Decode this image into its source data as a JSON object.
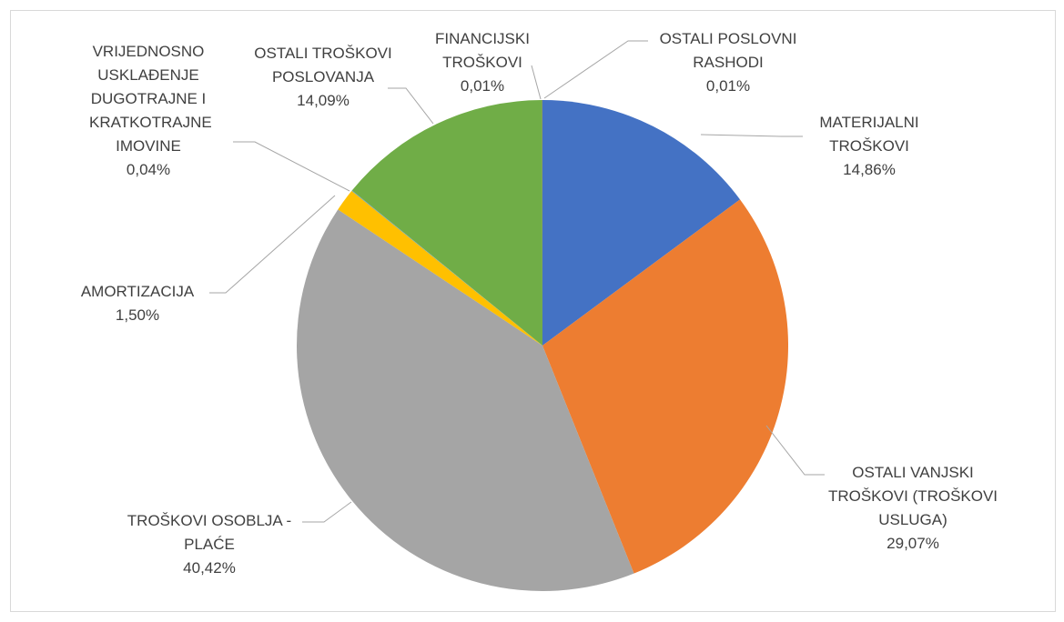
{
  "chart_data": {
    "type": "pie",
    "categories": [
      "MATERIJALNI TROŠKOVI",
      "OSTALI VANJSKI TROŠKOVI (TROŠKOVI USLUGA)",
      "TROŠKOVI OSOBLJA - PLAĆE",
      "AMORTIZACIJA",
      "VRIJEDNOSNO USKLAĐENJE DUGOTRAJNE I KRATKOTRAJNE IMOVINE",
      "OSTALI TROŠKOVI POSLOVANJA",
      "FINANCIJSKI TROŠKOVI",
      "OSTALI POSLOVNI RASHODI"
    ],
    "values": [
      14.86,
      29.07,
      40.42,
      1.5,
      0.04,
      14.09,
      0.01,
      0.01
    ],
    "value_labels": [
      "14,86%",
      "29,07%",
      "40,42%",
      "1,50%",
      "0,04%",
      "14,09%",
      "0,01%",
      "0,01%"
    ],
    "colors": [
      "#4472c4",
      "#ed7d31",
      "#a5a5a5",
      "#ffc000",
      "#5b9bd5",
      "#70ad47",
      "#264478",
      "#9e480e"
    ]
  }
}
